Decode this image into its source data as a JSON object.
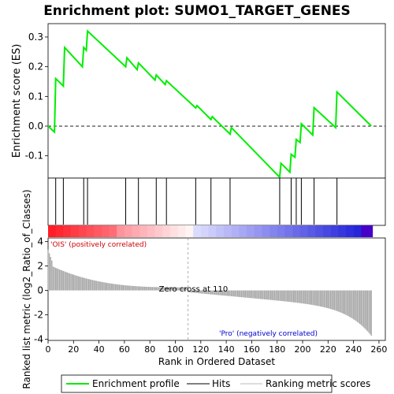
{
  "chart_data": {
    "type": "line",
    "title": "Enrichment plot: SUMO1_TARGET_GENES",
    "xlabel": "Rank in Ordered Dataset",
    "es_panel": {
      "ylabel": "Enrichment score (ES)",
      "yticks": [
        "0.3",
        "0.2",
        "0.1",
        "0.0",
        "-0.1"
      ],
      "ylim": [
        -0.175,
        0.345
      ],
      "series": [
        {
          "name": "Enrichment profile",
          "color": "#00ee00",
          "x": [
            0,
            5,
            6,
            12,
            13,
            27,
            28,
            30,
            31,
            61,
            62,
            70,
            71,
            84,
            85,
            92,
            93,
            116,
            117,
            128,
            129,
            143,
            144,
            182,
            183,
            190,
            191,
            194,
            195,
            198,
            199,
            208,
            209,
            226,
            227,
            254
          ],
          "y": [
            0.0,
            -0.02,
            0.16,
            0.135,
            0.265,
            0.2,
            0.265,
            0.255,
            0.32,
            0.2,
            0.23,
            0.19,
            0.213,
            0.155,
            0.172,
            0.14,
            0.153,
            0.061,
            0.069,
            0.022,
            0.032,
            -0.027,
            -0.005,
            -0.172,
            -0.125,
            -0.155,
            -0.095,
            -0.105,
            -0.045,
            -0.055,
            0.008,
            -0.03,
            0.062,
            -0.005,
            0.115,
            0.0
          ]
        }
      ]
    },
    "hits": [
      6,
      12,
      28,
      31,
      61,
      71,
      85,
      93,
      116,
      128,
      143,
      182,
      191,
      195,
      199,
      209,
      227
    ],
    "metric_panel": {
      "ylabel": "Ranked list metric (log2_Ratio_of_Classes)",
      "yticks": [
        "4",
        "2",
        "0",
        "-2",
        "-4"
      ],
      "ylim": [
        -4.1,
        4.3
      ],
      "zero_cross_text": "Zero cross at 110",
      "zero_cross": 110,
      "pos_label": "'OIS' (positively correlated)",
      "neg_label": "'Pro' (negatively correlated)"
    },
    "xticks": [
      "0",
      "20",
      "40",
      "60",
      "80",
      "100",
      "120",
      "140",
      "160",
      "180",
      "200",
      "220",
      "240",
      "260"
    ],
    "xlim": [
      0,
      265
    ],
    "n_genes": 255,
    "legend": {
      "placement": "bottom",
      "items": [
        "Enrichment profile",
        "Hits",
        "Ranking metric scores"
      ]
    }
  }
}
